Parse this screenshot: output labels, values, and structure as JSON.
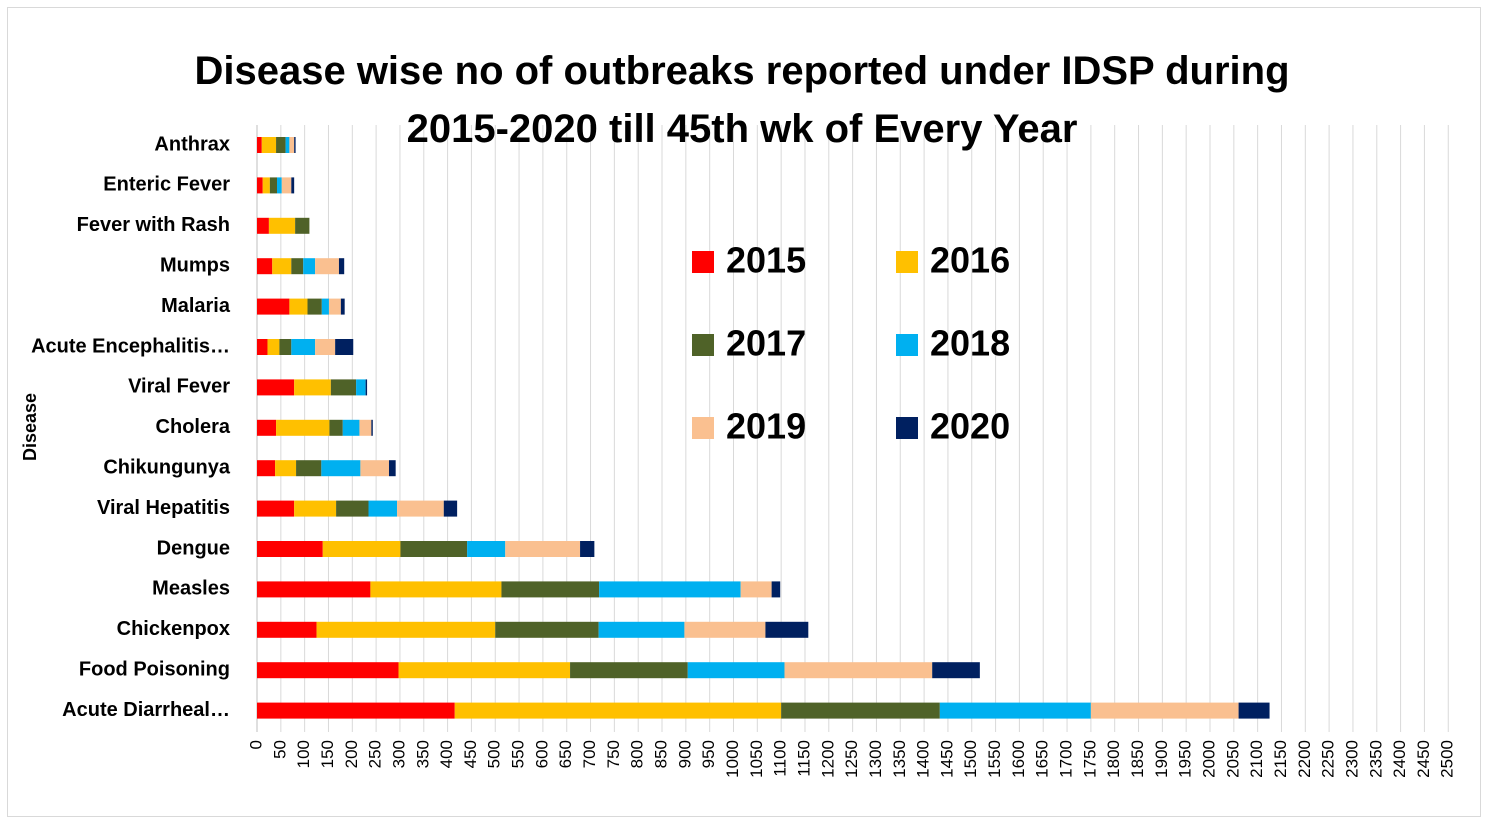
{
  "chart_data": {
    "type": "bar",
    "orientation": "horizontal",
    "stacked": true,
    "title": "Disease wise no of outbreaks reported under IDSP during 2015-2020 till 45th wk of Every Year",
    "title_lines": [
      "Disease wise no of outbreaks reported under IDSP during",
      "2015-2020 till 45th wk of Every Year"
    ],
    "ylabel": "Disease",
    "xlabel": "",
    "xlim": [
      0,
      2500
    ],
    "x_tick_step": 50,
    "grid": true,
    "legend_position": "center-right",
    "categories": [
      "Anthrax",
      "Enteric Fever",
      "Fever with Rash",
      "Mumps",
      "Malaria",
      "Acute Encephalitis…",
      "Viral Fever",
      "Cholera",
      "Chikungunya",
      "Viral Hepatitis",
      "Dengue",
      "Measles",
      "Chickenpox",
      "Food Poisoning",
      "Acute Diarrheal…"
    ],
    "series": [
      {
        "name": "2015",
        "color": "#FF0000",
        "values": [
          10,
          12,
          25,
          32,
          68,
          22,
          78,
          40,
          38,
          78,
          138,
          238,
          125,
          297,
          415
        ]
      },
      {
        "name": "2016",
        "color": "#FFC000",
        "values": [
          30,
          15,
          55,
          40,
          38,
          25,
          77,
          112,
          44,
          88,
          163,
          275,
          375,
          360,
          685
        ]
      },
      {
        "name": "2017",
        "color": "#4F6228",
        "values": [
          20,
          15,
          30,
          25,
          30,
          25,
          53,
          28,
          53,
          68,
          140,
          205,
          217,
          247,
          333
        ]
      },
      {
        "name": "2018",
        "color": "#00B0F0",
        "values": [
          8,
          10,
          0,
          25,
          15,
          50,
          20,
          35,
          82,
          60,
          80,
          297,
          180,
          203,
          317
        ]
      },
      {
        "name": "2019",
        "color": "#FAC090",
        "values": [
          10,
          20,
          0,
          50,
          25,
          42,
          0,
          25,
          60,
          98,
          157,
          65,
          170,
          310,
          310
        ]
      },
      {
        "name": "2020",
        "color": "#002060",
        "values": [
          3,
          6,
          0,
          11,
          8,
          38,
          3,
          3,
          14,
          28,
          30,
          18,
          90,
          100,
          65
        ]
      }
    ]
  }
}
